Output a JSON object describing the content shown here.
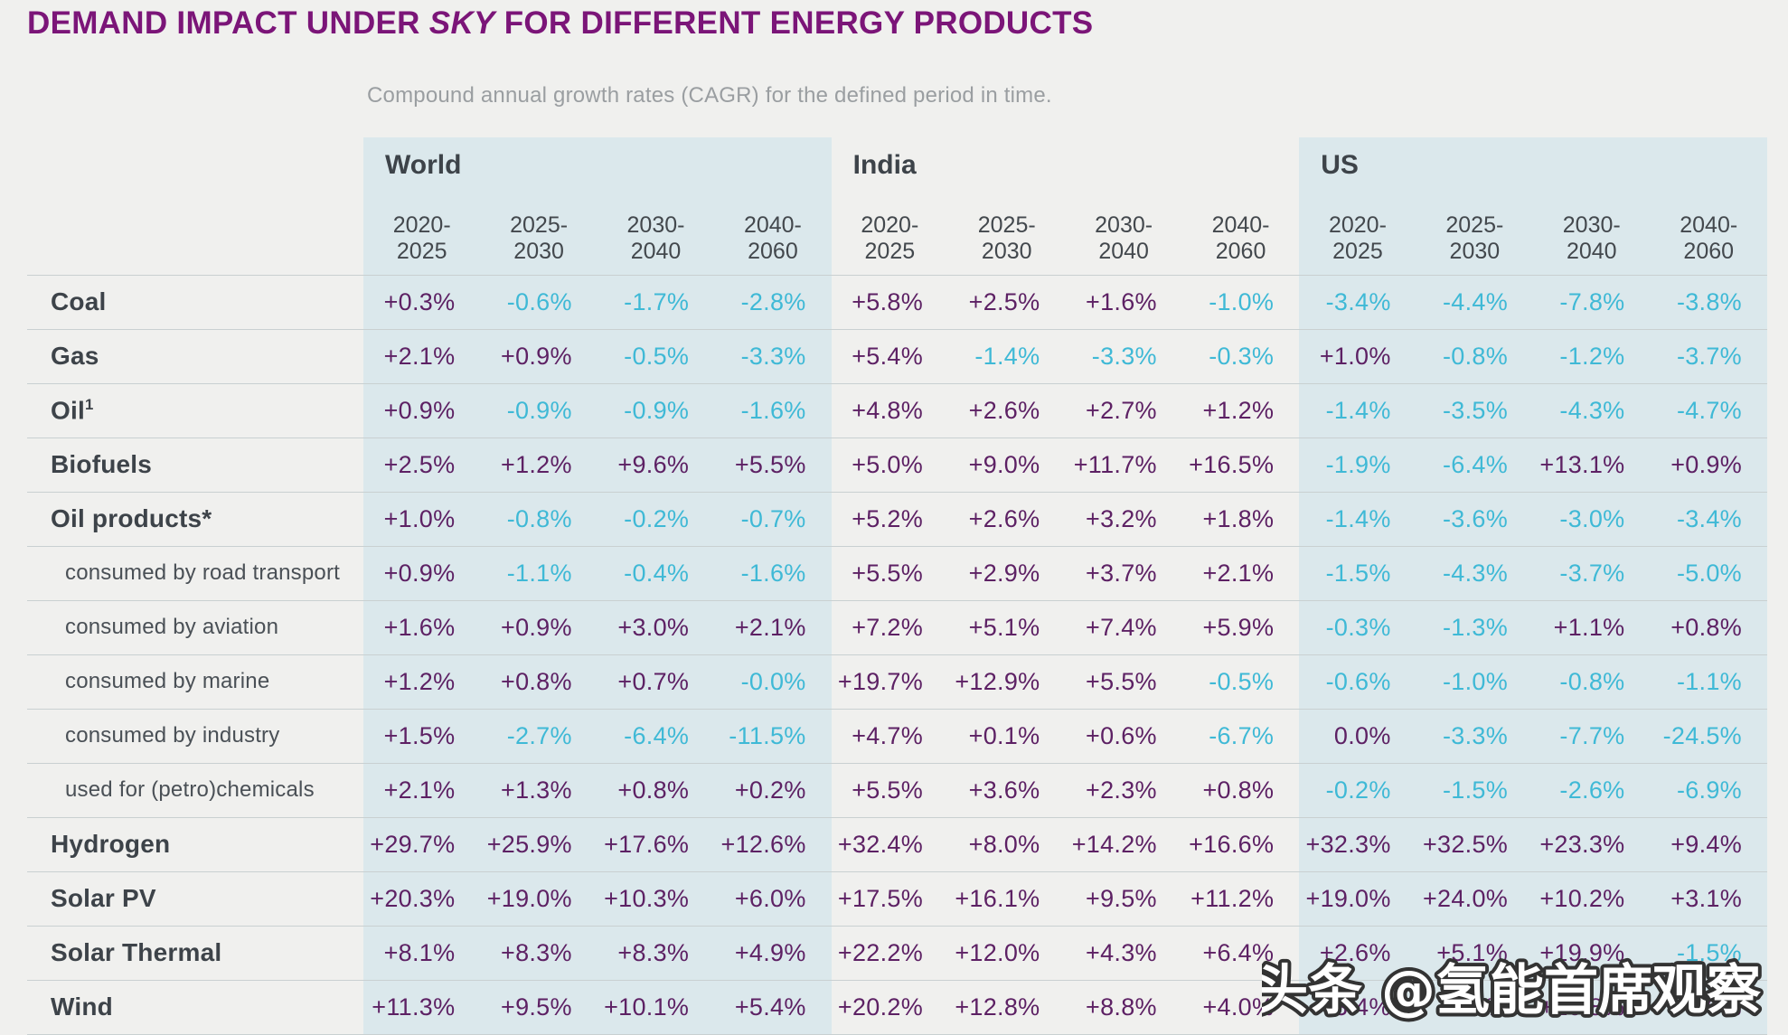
{
  "title": {
    "prefix": "DEMAND IMPACT UNDER ",
    "emphasis": "SKY",
    "suffix": " FOR DIFFERENT ENERGY PRODUCTS"
  },
  "subtitle": "Compound annual growth rates (CAGR) for the defined period in time.",
  "watermark": "头条 @氢能首席观察",
  "colors": {
    "title": "#7b1578",
    "positive_value": "#5d2164",
    "negative_value": "#3fb9d6",
    "panel_background": "#dbe8ec",
    "page_background": "#f0f0ee",
    "row_label": "#3d4349",
    "subtitle_gray": "#9a9ea1"
  },
  "chart_data": {
    "type": "table",
    "regions": [
      {
        "name": "World",
        "shaded": true
      },
      {
        "name": "India",
        "shaded": false
      },
      {
        "name": "US",
        "shaded": true
      }
    ],
    "periods": [
      [
        "2020-",
        "2025"
      ],
      [
        "2025-",
        "2030"
      ],
      [
        "2030-",
        "2040"
      ],
      [
        "2040-",
        "2060"
      ]
    ],
    "rows": [
      {
        "label": "Coal",
        "sup": "",
        "indent": false,
        "world": [
          "+0.3%",
          "-0.6%",
          "-1.7%",
          "-2.8%"
        ],
        "india": [
          "+5.8%",
          "+2.5%",
          "+1.6%",
          "-1.0%"
        ],
        "us": [
          "-3.4%",
          "-4.4%",
          "-7.8%",
          "-3.8%"
        ]
      },
      {
        "label": "Gas",
        "sup": "",
        "indent": false,
        "world": [
          "+2.1%",
          "+0.9%",
          "-0.5%",
          "-3.3%"
        ],
        "india": [
          "+5.4%",
          "-1.4%",
          "-3.3%",
          "-0.3%"
        ],
        "us": [
          "+1.0%",
          "-0.8%",
          "-1.2%",
          "-3.7%"
        ]
      },
      {
        "label": "Oil",
        "sup": "1",
        "indent": false,
        "world": [
          "+0.9%",
          "-0.9%",
          "-0.9%",
          "-1.6%"
        ],
        "india": [
          "+4.8%",
          "+2.6%",
          "+2.7%",
          "+1.2%"
        ],
        "us": [
          "-1.4%",
          "-3.5%",
          "-4.3%",
          "-4.7%"
        ]
      },
      {
        "label": "Biofuels",
        "sup": "",
        "indent": false,
        "world": [
          "+2.5%",
          "+1.2%",
          "+9.6%",
          "+5.5%"
        ],
        "india": [
          "+5.0%",
          "+9.0%",
          "+11.7%",
          "+16.5%"
        ],
        "us": [
          "-1.9%",
          "-6.4%",
          "+13.1%",
          "+0.9%"
        ]
      },
      {
        "label": "Oil products*",
        "sup": "",
        "indent": false,
        "world": [
          "+1.0%",
          "-0.8%",
          "-0.2%",
          "-0.7%"
        ],
        "india": [
          "+5.2%",
          "+2.6%",
          "+3.2%",
          "+1.8%"
        ],
        "us": [
          "-1.4%",
          "-3.6%",
          "-3.0%",
          "-3.4%"
        ]
      },
      {
        "label": "consumed by road transport",
        "sup": "",
        "indent": true,
        "world": [
          "+0.9%",
          "-1.1%",
          "-0.4%",
          "-1.6%"
        ],
        "india": [
          "+5.5%",
          "+2.9%",
          "+3.7%",
          "+2.1%"
        ],
        "us": [
          "-1.5%",
          "-4.3%",
          "-3.7%",
          "-5.0%"
        ]
      },
      {
        "label": "consumed by aviation",
        "sup": "",
        "indent": true,
        "world": [
          "+1.6%",
          "+0.9%",
          "+3.0%",
          "+2.1%"
        ],
        "india": [
          "+7.2%",
          "+5.1%",
          "+7.4%",
          "+5.9%"
        ],
        "us": [
          "-0.3%",
          "-1.3%",
          "+1.1%",
          "+0.8%"
        ]
      },
      {
        "label": "consumed by marine",
        "sup": "",
        "indent": true,
        "world": [
          "+1.2%",
          "+0.8%",
          "+0.7%",
          "-0.0%"
        ],
        "india": [
          "+19.7%",
          "+12.9%",
          "+5.5%",
          "-0.5%"
        ],
        "us": [
          "-0.6%",
          "-1.0%",
          "-0.8%",
          "-1.1%"
        ]
      },
      {
        "label": "consumed by industry",
        "sup": "",
        "indent": true,
        "world": [
          "+1.5%",
          "-2.7%",
          "-6.4%",
          "-11.5%"
        ],
        "india": [
          "+4.7%",
          "+0.1%",
          "+0.6%",
          "-6.7%"
        ],
        "us": [
          "0.0%",
          "-3.3%",
          "-7.7%",
          "-24.5%"
        ]
      },
      {
        "label": "used for (petro)chemicals",
        "sup": "",
        "indent": true,
        "world": [
          "+2.1%",
          "+1.3%",
          "+0.8%",
          "+0.2%"
        ],
        "india": [
          "+5.5%",
          "+3.6%",
          "+2.3%",
          "+0.8%"
        ],
        "us": [
          "-0.2%",
          "-1.5%",
          "-2.6%",
          "-6.9%"
        ]
      },
      {
        "label": "Hydrogen",
        "sup": "",
        "indent": false,
        "world": [
          "+29.7%",
          "+25.9%",
          "+17.6%",
          "+12.6%"
        ],
        "india": [
          "+32.4%",
          "+8.0%",
          "+14.2%",
          "+16.6%"
        ],
        "us": [
          "+32.3%",
          "+32.5%",
          "+23.3%",
          "+9.4%"
        ]
      },
      {
        "label": "Solar PV",
        "sup": "",
        "indent": false,
        "world": [
          "+20.3%",
          "+19.0%",
          "+10.3%",
          "+6.0%"
        ],
        "india": [
          "+17.5%",
          "+16.1%",
          "+9.5%",
          "+11.2%"
        ],
        "us": [
          "+19.0%",
          "+24.0%",
          "+10.2%",
          "+3.1%"
        ]
      },
      {
        "label": "Solar Thermal",
        "sup": "",
        "indent": false,
        "world": [
          "+8.1%",
          "+8.3%",
          "+8.3%",
          "+4.9%"
        ],
        "india": [
          "+22.2%",
          "+12.0%",
          "+4.3%",
          "+6.4%"
        ],
        "us": [
          "+2.6%",
          "+5.1%",
          "+19.9%",
          "-1.5%"
        ]
      },
      {
        "label": "Wind",
        "sup": "",
        "indent": false,
        "world": [
          "+11.3%",
          "+9.5%",
          "+10.1%",
          "+5.4%"
        ],
        "india": [
          "+20.2%",
          "+12.8%",
          "+8.8%",
          "+4.0%"
        ],
        "us": [
          "+3.4%",
          "+8.6%",
          "+10.8%",
          "+6.6%"
        ]
      }
    ]
  }
}
